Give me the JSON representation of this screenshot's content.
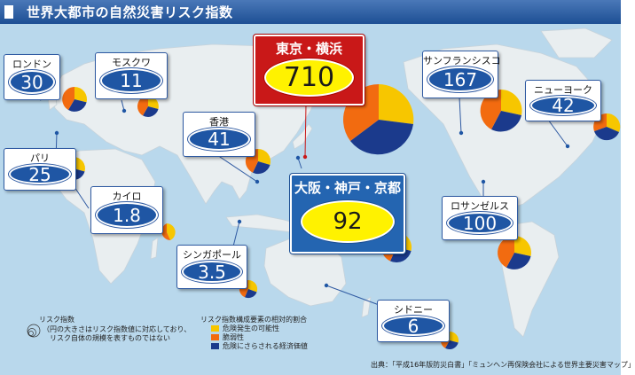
{
  "title": "世界大都市の自然災害リスク指数",
  "colors": {
    "hazard": "#f7c600",
    "vulnerability": "#f26b10",
    "exposure": "#1b3a8c",
    "ocean": "#b9d8ec",
    "land": "#e9eef0",
    "header": "#1d4f94"
  },
  "cities": [
    {
      "id": "london",
      "name": "ロンドン",
      "value": "30"
    },
    {
      "id": "moscow",
      "name": "モスクワ",
      "value": "11"
    },
    {
      "id": "tokyo",
      "name": "東京・横浜",
      "value": "710"
    },
    {
      "id": "sanfrancisco",
      "name": "サンフランシスコ",
      "value": "167"
    },
    {
      "id": "newyork",
      "name": "ニューヨーク",
      "value": "42"
    },
    {
      "id": "hongkong",
      "name": "香港",
      "value": "41"
    },
    {
      "id": "paris",
      "name": "パリ",
      "value": "25"
    },
    {
      "id": "osaka",
      "name": "大阪・神戸・京都",
      "value": "92"
    },
    {
      "id": "cairo",
      "name": "カイロ",
      "value": "1.8"
    },
    {
      "id": "losangeles",
      "name": "ロサンゼルス",
      "value": "100"
    },
    {
      "id": "singapore",
      "name": "シンガポール",
      "value": "3.5"
    },
    {
      "id": "sydney",
      "name": "シドニー",
      "value": "6"
    }
  ],
  "legend": {
    "risk_heading": "リスク指数",
    "risk_note_1": "（円の大きさはリスク指数値に対応しており、",
    "risk_note_2": "リスク自体の規模を表すものではない",
    "factors_heading": "リスク指数構成要素の相対的割合",
    "factor_hazard": "危険発生の可能性",
    "factor_vulnerability": "脆弱性",
    "factor_exposure": "危険にさらされる経済価値"
  },
  "source": "出典：「平成16年版防災白書」「ミュンヘン再保険会社による世界主要災害マップ」"
}
